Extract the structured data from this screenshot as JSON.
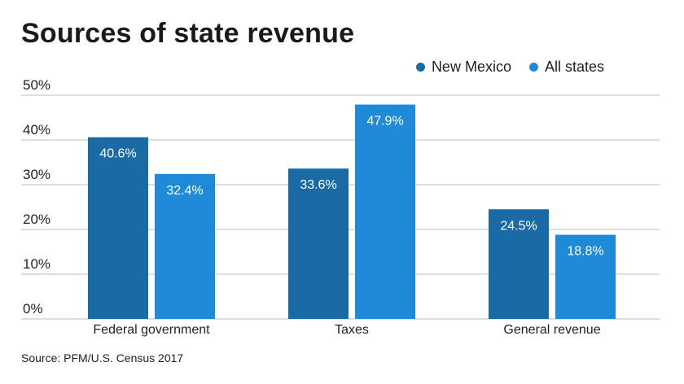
{
  "chart_data": {
    "type": "bar",
    "title": "Sources of state revenue",
    "categories": [
      "Federal government",
      "Taxes",
      "General revenue"
    ],
    "series": [
      {
        "name": "New Mexico",
        "values": [
          40.6,
          33.6,
          24.5
        ],
        "labels": [
          "40.6%",
          "33.6%",
          "24.5%"
        ],
        "color": "#1a6aa5"
      },
      {
        "name": "All states",
        "values": [
          32.4,
          47.9,
          18.8
        ],
        "labels": [
          "32.4%",
          "47.9%",
          "18.8%"
        ],
        "color": "#1f8bd8"
      }
    ],
    "ylim": [
      0,
      50
    ],
    "yticks": [
      0,
      10,
      20,
      30,
      40,
      50
    ],
    "ytick_labels": [
      "0%",
      "10%",
      "20%",
      "30%",
      "40%",
      "50%"
    ],
    "grid": true,
    "legend_position": "top-right",
    "xlabel": "",
    "ylabel": ""
  },
  "source": "Source: PFM/U.S. Census 2017"
}
